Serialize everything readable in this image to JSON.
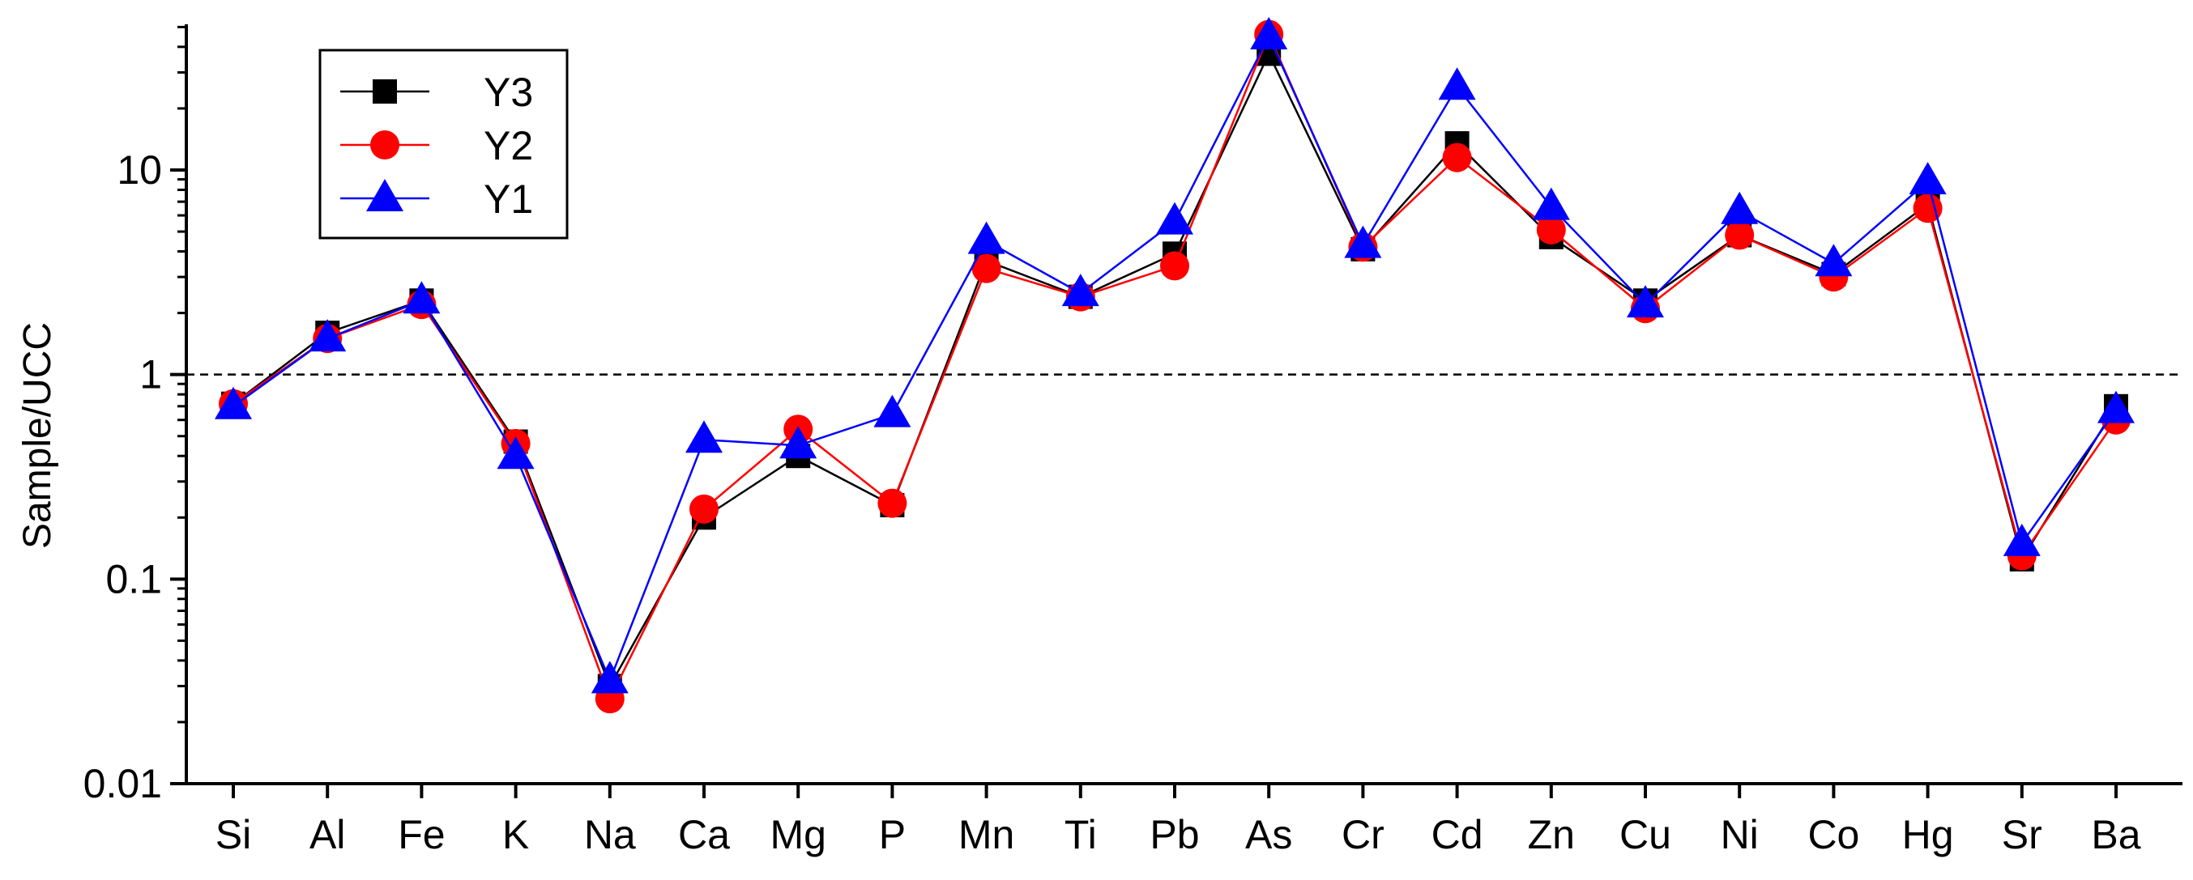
{
  "chart_data": {
    "type": "line",
    "title": "",
    "xlabel": "",
    "ylabel": "Sample/UCC",
    "yscale": "log",
    "ylim": [
      0.01,
      60
    ],
    "yticks": [
      0.01,
      0.1,
      1,
      10
    ],
    "ytick_labels": [
      "0.01",
      "0.1",
      "1",
      "10"
    ],
    "reference_line": {
      "y": 1,
      "style": "dashed"
    },
    "categories": [
      "Si",
      "Al",
      "Fe",
      "K",
      "Na",
      "Ca",
      "Mg",
      "P",
      "Mn",
      "Ti",
      "Pb",
      "As",
      "Cr",
      "Cd",
      "Zn",
      "Cu",
      "Ni",
      "Co",
      "Hg",
      "Sr",
      "Ba"
    ],
    "legend_position": "top-left",
    "series": [
      {
        "name": "Y3",
        "marker": "square",
        "color": "#000000",
        "values": [
          0.72,
          1.6,
          2.3,
          0.47,
          0.03,
          0.2,
          0.4,
          0.23,
          3.6,
          2.4,
          3.9,
          37,
          4.1,
          13.5,
          4.7,
          2.3,
          4.8,
          3.1,
          6.8,
          0.125,
          0.7
        ]
      },
      {
        "name": "Y2",
        "marker": "circle",
        "color": "#ff0000",
        "values": [
          0.72,
          1.5,
          2.2,
          0.46,
          0.026,
          0.22,
          0.54,
          0.235,
          3.3,
          2.4,
          3.4,
          46,
          4.2,
          11.5,
          5.1,
          2.1,
          4.8,
          3.0,
          6.5,
          0.13,
          0.6
        ]
      },
      {
        "name": "Y1",
        "marker": "triangle",
        "color": "#0000ff",
        "values": [
          0.7,
          1.5,
          2.3,
          0.4,
          0.032,
          0.48,
          0.45,
          0.64,
          4.5,
          2.5,
          5.6,
          45,
          4.3,
          25.5,
          6.6,
          2.2,
          6.3,
          3.5,
          8.8,
          0.15,
          0.67
        ]
      }
    ]
  }
}
